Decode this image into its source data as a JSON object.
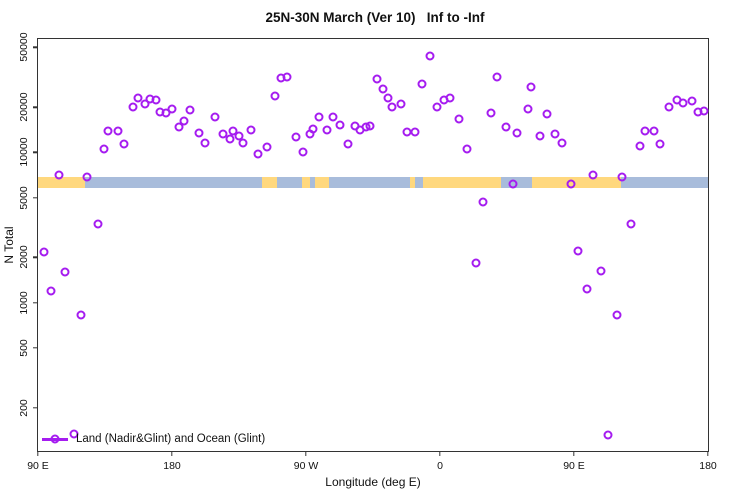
{
  "figure": {
    "title": "25N-30N March (Ver 10)   Inf to -Inf"
  },
  "legend": {
    "label": "Land (Nadir&Glint) and Ocean (Glint)"
  },
  "colors": {
    "point_purple": "#a51cf0",
    "band_land_orange": "#ffd87e",
    "band_ocean_blue": "#a8bcdb",
    "axis": "#333333"
  },
  "chart_data": {
    "type": "scatter",
    "title": "25N-30N March (Ver 10)   Inf to -Inf",
    "xlabel": "Longitude (deg E)",
    "ylabel": "N Total",
    "legend_position": "bottom-left",
    "grid": false,
    "x_axis": {
      "unwrapped_deg_range": [
        90,
        540
      ],
      "ticks": [
        {
          "deg": 90,
          "label": "90 E"
        },
        {
          "deg": 180,
          "label": "180"
        },
        {
          "deg": 270,
          "label": "90 W"
        },
        {
          "deg": 360,
          "label": "0"
        },
        {
          "deg": 450,
          "label": "90 E"
        },
        {
          "deg": 540,
          "label": "180"
        }
      ]
    },
    "y_axis": {
      "scale": "log10",
      "range": [
        103,
        56900
      ],
      "ticks": [
        200,
        500,
        1000,
        2000,
        5000,
        10000,
        20000,
        50000
      ]
    },
    "series": [
      {
        "name": "Land (Nadir&Glint) and Ocean (Glint)",
        "marker": "open-circle",
        "points": [
          [
            104,
            7100
          ],
          [
            123,
            6830
          ],
          [
            134,
            10600
          ],
          [
            137,
            13800
          ],
          [
            144,
            13800
          ],
          [
            148,
            11300
          ],
          [
            154,
            20100
          ],
          [
            157,
            23100
          ],
          [
            162,
            21100
          ],
          [
            165,
            22800
          ],
          [
            169,
            22400
          ],
          [
            172,
            18700
          ],
          [
            176,
            18400
          ],
          [
            180,
            19600
          ],
          [
            185,
            14700
          ],
          [
            188,
            16300
          ],
          [
            192,
            19300
          ],
          [
            198,
            13400
          ],
          [
            202,
            11600
          ],
          [
            209,
            17100
          ],
          [
            214,
            13200
          ],
          [
            219,
            12200
          ],
          [
            221,
            13800
          ],
          [
            225,
            12800
          ],
          [
            228,
            11500
          ],
          [
            233,
            14200
          ],
          [
            238,
            9700
          ],
          [
            244,
            10800
          ],
          [
            249,
            23800
          ],
          [
            253,
            31400
          ],
          [
            257,
            31900
          ],
          [
            263,
            12600
          ],
          [
            268,
            10000
          ],
          [
            273,
            13200
          ],
          [
            275,
            14400
          ],
          [
            279,
            17300
          ],
          [
            284,
            14000
          ],
          [
            288,
            17100
          ],
          [
            293,
            15300
          ],
          [
            298,
            11300
          ],
          [
            303,
            15100
          ],
          [
            306,
            14000
          ],
          [
            310,
            14700
          ],
          [
            313,
            15100
          ],
          [
            318,
            30900
          ],
          [
            322,
            26500
          ],
          [
            325,
            23100
          ],
          [
            328,
            20100
          ],
          [
            334,
            21100
          ],
          [
            338,
            13600
          ],
          [
            343,
            13600
          ],
          [
            348,
            28600
          ],
          [
            353,
            43900
          ],
          [
            358,
            20100
          ],
          [
            363,
            22400
          ],
          [
            367,
            23100
          ],
          [
            373,
            16600
          ],
          [
            378,
            10600
          ],
          [
            389,
            4670
          ],
          [
            384,
            1840
          ],
          [
            394,
            18400
          ],
          [
            398,
            31900
          ],
          [
            404,
            14700
          ],
          [
            409,
            6140
          ],
          [
            412,
            13400
          ],
          [
            419,
            19600
          ],
          [
            421,
            27400
          ],
          [
            427,
            12800
          ],
          [
            432,
            17900
          ],
          [
            437,
            13200
          ],
          [
            442,
            11500
          ],
          [
            448,
            6140
          ],
          [
            453,
            2210
          ],
          [
            459,
            1240
          ],
          [
            463,
            7040
          ],
          [
            468,
            1630
          ],
          [
            473,
            132
          ],
          [
            479,
            830
          ],
          [
            482,
            6830
          ],
          [
            488,
            3330
          ],
          [
            494,
            11000
          ],
          [
            498,
            13800
          ],
          [
            504,
            13800
          ],
          [
            508,
            11300
          ],
          [
            514,
            20100
          ],
          [
            519,
            22400
          ],
          [
            523,
            21400
          ],
          [
            529,
            22100
          ],
          [
            533,
            18700
          ],
          [
            537,
            19000
          ],
          [
            94,
            2180
          ],
          [
            99,
            1200
          ],
          [
            108,
            1600
          ],
          [
            114,
            134
          ],
          [
            119,
            830
          ],
          [
            130,
            3330
          ]
        ]
      }
    ],
    "map_band": {
      "value_range": [
        5780,
        6830
      ],
      "land_color": "#ffd87e",
      "ocean_color": "#a8bcdb",
      "segments": [
        {
          "from": 90,
          "to": 121.5,
          "type": "land"
        },
        {
          "from": 121.5,
          "to": 240.7,
          "type": "ocean"
        },
        {
          "from": 240.7,
          "to": 250.7,
          "type": "land"
        },
        {
          "from": 250.7,
          "to": 267.4,
          "type": "ocean"
        },
        {
          "from": 267.4,
          "to": 272.8,
          "type": "land"
        },
        {
          "from": 272.8,
          "to": 276.1,
          "type": "ocean"
        },
        {
          "from": 276.1,
          "to": 285.5,
          "type": "land"
        },
        {
          "from": 285.5,
          "to": 340,
          "type": "ocean"
        },
        {
          "from": 340,
          "to": 343,
          "type": "land"
        },
        {
          "from": 343,
          "to": 348.5,
          "type": "ocean"
        },
        {
          "from": 348.5,
          "to": 401.3,
          "type": "land"
        },
        {
          "from": 401.3,
          "to": 422.1,
          "type": "ocean"
        },
        {
          "from": 422.1,
          "to": 481.7,
          "type": "land"
        },
        {
          "from": 481.7,
          "to": 540,
          "type": "ocean"
        }
      ]
    }
  }
}
